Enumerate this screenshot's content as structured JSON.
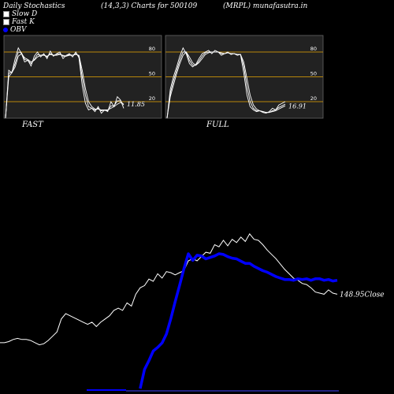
{
  "header": {
    "left": "Daily Stochastics",
    "center": "(14,3,3) Charts for 500109",
    "right": "(MRPL) munafasutra.in"
  },
  "legend": [
    {
      "label": "Slow  D",
      "color": "#ffffff"
    },
    {
      "label": "Fast K",
      "color": "#ffffff"
    },
    {
      "label": "OBV",
      "color": "#0000ff"
    }
  ],
  "chart_data": [
    {
      "type": "line",
      "title": "FAST",
      "ylim": [
        0,
        100
      ],
      "levels": [
        20,
        50,
        80
      ],
      "level_labels": [
        "20",
        "50",
        "80"
      ],
      "last_label": "11.85",
      "series": [
        {
          "values": [
            0,
            58,
            55,
            72,
            85,
            78,
            68,
            70,
            63,
            75,
            80,
            74,
            78,
            72,
            81,
            75,
            78,
            80,
            72,
            76,
            78,
            74,
            80,
            73,
            40,
            18,
            10,
            12,
            8,
            14,
            6,
            10,
            8,
            20,
            14,
            26,
            22,
            12
          ]
        },
        {
          "values": [
            0,
            54,
            56,
            66,
            80,
            79,
            71,
            70,
            66,
            71,
            77,
            76,
            77,
            74,
            78,
            76,
            77,
            78,
            75,
            75,
            77,
            76,
            78,
            75,
            50,
            28,
            14,
            12,
            10,
            12,
            9,
            10,
            9,
            15,
            15,
            21,
            21,
            16
          ]
        },
        {
          "values": [
            0,
            50,
            55,
            62,
            75,
            78,
            73,
            71,
            68,
            70,
            74,
            76,
            76,
            75,
            77,
            76,
            76,
            77,
            76,
            75,
            76,
            76,
            77,
            76,
            58,
            36,
            20,
            14,
            11,
            11,
            10,
            10,
            10,
            12,
            14,
            17,
            19,
            17
          ]
        }
      ]
    },
    {
      "type": "line",
      "title": "FULL",
      "ylim": [
        0,
        100
      ],
      "levels": [
        20,
        50,
        80
      ],
      "level_labels": [
        "20",
        "50",
        "80"
      ],
      "last_label": "16.91",
      "series": [
        {
          "values": [
            0,
            35,
            50,
            62,
            75,
            85,
            78,
            66,
            62,
            65,
            72,
            78,
            80,
            82,
            78,
            82,
            80,
            76,
            78,
            80,
            77,
            78,
            76,
            77,
            55,
            28,
            14,
            10,
            8,
            9,
            7,
            6,
            8,
            12,
            10,
            16,
            18,
            20
          ]
        },
        {
          "values": [
            0,
            30,
            45,
            58,
            70,
            80,
            80,
            70,
            64,
            64,
            69,
            75,
            79,
            80,
            80,
            80,
            80,
            78,
            78,
            79,
            78,
            78,
            77,
            77,
            63,
            38,
            20,
            12,
            9,
            9,
            8,
            7,
            7,
            9,
            10,
            13,
            15,
            17
          ]
        },
        {
          "values": [
            0,
            26,
            40,
            54,
            66,
            76,
            80,
            74,
            67,
            64,
            67,
            72,
            77,
            79,
            80,
            80,
            80,
            79,
            78,
            79,
            78,
            78,
            77,
            77,
            68,
            48,
            28,
            16,
            11,
            9,
            8,
            7,
            7,
            8,
            9,
            11,
            13,
            15
          ]
        }
      ]
    },
    {
      "type": "line",
      "last_label": "148.95",
      "last_suffix": "Close",
      "series": [
        {
          "values": [
            104,
            104,
            105,
            107,
            108,
            107,
            107,
            106,
            104,
            102,
            103,
            106,
            110,
            114,
            126,
            131,
            129,
            127,
            125,
            123,
            121,
            123,
            119,
            123,
            126,
            129,
            134,
            136,
            134,
            141,
            138,
            149,
            155,
            157,
            163,
            161,
            168,
            164,
            170,
            169,
            167,
            169,
            171,
            180,
            182,
            180,
            184,
            188,
            187,
            195,
            193,
            199,
            194,
            200,
            197,
            202,
            198,
            205,
            200,
            199,
            195,
            190,
            186,
            182,
            177,
            172,
            168,
            164,
            162,
            159,
            158,
            155,
            151,
            150,
            149,
            153,
            150,
            149
          ]
        },
        {
          "values": [
            null,
            null,
            null,
            null,
            null,
            null,
            null,
            null,
            null,
            null,
            null,
            null,
            null,
            null,
            null,
            null,
            null,
            null,
            null,
            null,
            null,
            null,
            null,
            null,
            null,
            null,
            null,
            null,
            null,
            null,
            null,
            null,
            2,
            28,
            40,
            53,
            58,
            64,
            76,
            97,
            120,
            142,
            165,
            185,
            176,
            183,
            182,
            178,
            180,
            182,
            185,
            184,
            181,
            179,
            178,
            175,
            172,
            172,
            168,
            165,
            162,
            160,
            157,
            154,
            152,
            150,
            150,
            149,
            151,
            150,
            151,
            149,
            151,
            151,
            149,
            150,
            148,
            149
          ]
        }
      ]
    }
  ]
}
